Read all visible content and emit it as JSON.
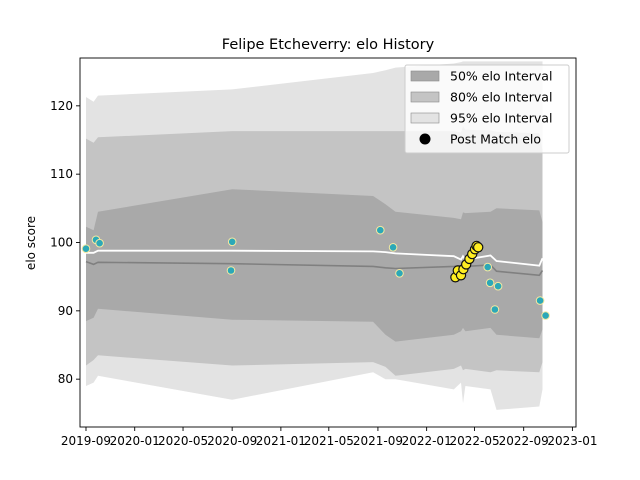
{
  "chart_data": {
    "type": "line",
    "title": "Felipe Etcheverry: elo History",
    "xlabel": "",
    "ylabel": "elo score",
    "ylim": [
      73,
      127
    ],
    "xlim": [
      "2019-08-17",
      "2023-01-10"
    ],
    "x_ticks": [
      "2019-09",
      "2020-01",
      "2020-05",
      "2020-09",
      "2021-01",
      "2021-05",
      "2021-09",
      "2022-01",
      "2022-05",
      "2022-09",
      "2023-01"
    ],
    "y_ticks": [
      80,
      90,
      100,
      110,
      120
    ],
    "grid": false,
    "legend_position": "top-right",
    "colors": {
      "band_50": "#a9a9a9",
      "band_80": "#c4c4c4",
      "band_95": "#e3e3e3",
      "median_line": "#808080",
      "mean_line": "#ffffff",
      "points_a": "#2ca8b8",
      "points_b": "#ffee22",
      "marker_edge_a": "#f5e9a0",
      "marker_edge_b": "#111111"
    },
    "legend": [
      {
        "label": "50% elo Interval",
        "kind": "band_50"
      },
      {
        "label": "80% elo Interval",
        "kind": "band_80"
      },
      {
        "label": "95% elo Interval",
        "kind": "band_95"
      },
      {
        "label": "Post Match elo",
        "kind": "marker"
      }
    ],
    "bands": {
      "x": [
        "2019-09-01",
        "2019-09-20",
        "2019-10-01",
        "2020-09-01",
        "2021-08-20",
        "2021-09-20",
        "2021-10-15",
        "2022-03-10",
        "2022-03-28",
        "2022-04-02",
        "2022-04-08",
        "2022-06-10",
        "2022-06-25",
        "2022-10-10",
        "2022-10-18"
      ],
      "p95_upper": [
        121.3,
        120.6,
        121.5,
        122.4,
        124.8,
        125.2,
        125.6,
        126.2,
        126.4,
        126.5,
        126.5,
        126.5,
        126.5,
        126.5,
        126.5
      ],
      "p80_upper": [
        115.2,
        114.6,
        115.4,
        116.3,
        116.3,
        116.3,
        116.3,
        116.3,
        116.1,
        117.0,
        116.5,
        116.4,
        116.2,
        116.0,
        113.6
      ],
      "p50_upper": [
        102.3,
        101.8,
        104.5,
        107.8,
        106.8,
        105.6,
        104.5,
        103.6,
        103.4,
        104.4,
        104.3,
        104.5,
        105.0,
        104.7,
        103.0
      ],
      "median": [
        97.2,
        96.8,
        97.1,
        96.9,
        96.5,
        96.3,
        96.2,
        96.5,
        96.6,
        96.7,
        96.5,
        96.7,
        95.8,
        95.2,
        95.9
      ],
      "mean": [
        98.5,
        98.5,
        98.8,
        98.8,
        98.7,
        98.6,
        98.4,
        98.0,
        97.5,
        98.0,
        97.5,
        98.1,
        97.3,
        96.6,
        97.7
      ],
      "p50_lower": [
        88.5,
        89.0,
        90.3,
        88.7,
        88.4,
        86.5,
        85.5,
        86.5,
        87.0,
        87.5,
        87.0,
        87.5,
        86.5,
        86.0,
        87.3
      ],
      "p80_lower": [
        82.0,
        82.8,
        83.5,
        82.0,
        82.5,
        81.8,
        80.5,
        81.5,
        82.0,
        81.3,
        81.5,
        81.0,
        81.3,
        81.0,
        82.5
      ],
      "p95_lower": [
        79.0,
        79.5,
        80.5,
        77.0,
        81.0,
        80.0,
        80.0,
        78.5,
        79.5,
        76.5,
        79.0,
        78.5,
        75.5,
        76.0,
        78.5
      ]
    },
    "series": [
      {
        "name": "Post Match elo",
        "points": [
          {
            "x": "2019-09-01",
            "y": 99.1,
            "group": "a"
          },
          {
            "x": "2019-09-26",
            "y": 100.4,
            "group": "a"
          },
          {
            "x": "2019-10-05",
            "y": 99.9,
            "group": "a"
          },
          {
            "x": "2020-09-01",
            "y": 100.1,
            "group": "a"
          },
          {
            "x": "2020-08-29",
            "y": 95.9,
            "group": "a"
          },
          {
            "x": "2021-09-07",
            "y": 101.8,
            "group": "a"
          },
          {
            "x": "2021-10-09",
            "y": 99.3,
            "group": "a"
          },
          {
            "x": "2021-10-25",
            "y": 95.5,
            "group": "a"
          },
          {
            "x": "2022-03-14",
            "y": 94.9,
            "group": "b"
          },
          {
            "x": "2022-03-20",
            "y": 95.9,
            "group": "b"
          },
          {
            "x": "2022-03-28",
            "y": 95.2,
            "group": "b"
          },
          {
            "x": "2022-04-03",
            "y": 96.1,
            "group": "b"
          },
          {
            "x": "2022-04-10",
            "y": 96.8,
            "group": "b"
          },
          {
            "x": "2022-04-18",
            "y": 97.6,
            "group": "b"
          },
          {
            "x": "2022-04-25",
            "y": 98.3,
            "group": "b"
          },
          {
            "x": "2022-05-02",
            "y": 99.0,
            "group": "b"
          },
          {
            "x": "2022-05-06",
            "y": 99.5,
            "group": "b"
          },
          {
            "x": "2022-05-10",
            "y": 99.3,
            "group": "b"
          },
          {
            "x": "2022-06-03",
            "y": 96.4,
            "group": "a"
          },
          {
            "x": "2022-06-09",
            "y": 94.1,
            "group": "a"
          },
          {
            "x": "2022-06-21",
            "y": 90.2,
            "group": "a"
          },
          {
            "x": "2022-06-29",
            "y": 93.6,
            "group": "a"
          },
          {
            "x": "2022-10-12",
            "y": 91.5,
            "group": "a"
          },
          {
            "x": "2022-10-26",
            "y": 89.3,
            "group": "a"
          }
        ]
      }
    ]
  }
}
